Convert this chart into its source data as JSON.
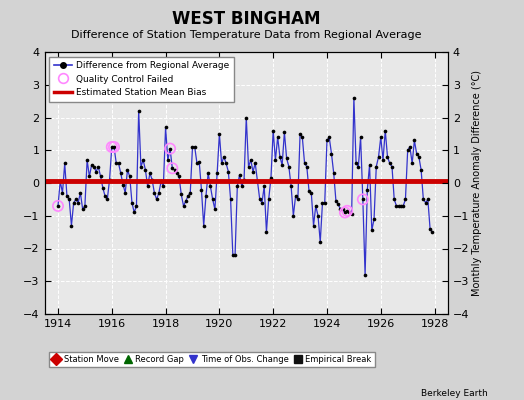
{
  "title": "WEST BINGHAM",
  "subtitle": "Difference of Station Temperature Data from Regional Average",
  "ylabel": "Monthly Temperature Anomaly Difference (°C)",
  "xlabel_bottom": "Berkeley Earth",
  "bias": 0.05,
  "xlim": [
    1913.5,
    1928.5
  ],
  "ylim": [
    -4,
    4
  ],
  "bg_color": "#d3d3d3",
  "plot_bg_color": "#e8e8e8",
  "grid_color": "#ffffff",
  "line_color": "#3333cc",
  "bias_color": "#cc0000",
  "marker_color": "#000000",
  "qc_color": "#ff88ff",
  "xticks": [
    1914,
    1916,
    1918,
    1920,
    1922,
    1924,
    1926,
    1928
  ],
  "yticks": [
    -4,
    -3,
    -2,
    -1,
    0,
    1,
    2,
    3,
    4
  ],
  "data": [
    [
      1914.0,
      -0.7
    ],
    [
      1914.083,
      0.05
    ],
    [
      1914.167,
      -0.3
    ],
    [
      1914.25,
      0.6
    ],
    [
      1914.333,
      -0.4
    ],
    [
      1914.417,
      -0.5
    ],
    [
      1914.5,
      -1.3
    ],
    [
      1914.583,
      -0.6
    ],
    [
      1914.667,
      -0.5
    ],
    [
      1914.75,
      -0.6
    ],
    [
      1914.833,
      -0.3
    ],
    [
      1914.917,
      -0.8
    ],
    [
      1915.0,
      -0.7
    ],
    [
      1915.083,
      0.7
    ],
    [
      1915.167,
      0.2
    ],
    [
      1915.25,
      0.55
    ],
    [
      1915.333,
      0.5
    ],
    [
      1915.417,
      0.35
    ],
    [
      1915.5,
      0.5
    ],
    [
      1915.583,
      0.2
    ],
    [
      1915.667,
      -0.15
    ],
    [
      1915.75,
      -0.4
    ],
    [
      1915.833,
      -0.5
    ],
    [
      1915.917,
      0.1
    ],
    [
      1916.0,
      1.1
    ],
    [
      1916.083,
      1.1
    ],
    [
      1916.167,
      0.6
    ],
    [
      1916.25,
      0.6
    ],
    [
      1916.333,
      0.3
    ],
    [
      1916.417,
      -0.05
    ],
    [
      1916.5,
      -0.3
    ],
    [
      1916.583,
      0.4
    ],
    [
      1916.667,
      0.2
    ],
    [
      1916.75,
      -0.6
    ],
    [
      1916.833,
      -0.9
    ],
    [
      1916.917,
      -0.7
    ],
    [
      1917.0,
      2.2
    ],
    [
      1917.083,
      0.5
    ],
    [
      1917.167,
      0.7
    ],
    [
      1917.25,
      0.4
    ],
    [
      1917.333,
      -0.1
    ],
    [
      1917.417,
      0.3
    ],
    [
      1917.5,
      0.1
    ],
    [
      1917.583,
      -0.3
    ],
    [
      1917.667,
      -0.5
    ],
    [
      1917.75,
      -0.3
    ],
    [
      1917.833,
      0.05
    ],
    [
      1917.917,
      -0.1
    ],
    [
      1918.0,
      1.7
    ],
    [
      1918.083,
      0.7
    ],
    [
      1918.167,
      1.05
    ],
    [
      1918.25,
      0.45
    ],
    [
      1918.333,
      0.4
    ],
    [
      1918.417,
      0.3
    ],
    [
      1918.5,
      0.2
    ],
    [
      1918.583,
      -0.35
    ],
    [
      1918.667,
      -0.7
    ],
    [
      1918.75,
      -0.55
    ],
    [
      1918.833,
      -0.4
    ],
    [
      1918.917,
      -0.3
    ],
    [
      1919.0,
      1.1
    ],
    [
      1919.083,
      1.1
    ],
    [
      1919.167,
      0.6
    ],
    [
      1919.25,
      0.65
    ],
    [
      1919.333,
      -0.2
    ],
    [
      1919.417,
      -1.3
    ],
    [
      1919.5,
      -0.4
    ],
    [
      1919.583,
      0.3
    ],
    [
      1919.667,
      -0.1
    ],
    [
      1919.75,
      -0.5
    ],
    [
      1919.833,
      -0.8
    ],
    [
      1919.917,
      0.3
    ],
    [
      1920.0,
      1.5
    ],
    [
      1920.083,
      0.6
    ],
    [
      1920.167,
      0.8
    ],
    [
      1920.25,
      0.6
    ],
    [
      1920.333,
      0.35
    ],
    [
      1920.417,
      -0.5
    ],
    [
      1920.5,
      -2.2
    ],
    [
      1920.583,
      -2.2
    ],
    [
      1920.667,
      -0.1
    ],
    [
      1920.75,
      0.25
    ],
    [
      1920.833,
      -0.1
    ],
    [
      1920.917,
      0.1
    ],
    [
      1921.0,
      2.0
    ],
    [
      1921.083,
      0.5
    ],
    [
      1921.167,
      0.7
    ],
    [
      1921.25,
      0.35
    ],
    [
      1921.333,
      0.6
    ],
    [
      1921.417,
      0.05
    ],
    [
      1921.5,
      -0.5
    ],
    [
      1921.583,
      -0.6
    ],
    [
      1921.667,
      -0.1
    ],
    [
      1921.75,
      -1.5
    ],
    [
      1921.833,
      -0.5
    ],
    [
      1921.917,
      0.15
    ],
    [
      1922.0,
      1.6
    ],
    [
      1922.083,
      0.7
    ],
    [
      1922.167,
      1.4
    ],
    [
      1922.25,
      0.8
    ],
    [
      1922.333,
      0.55
    ],
    [
      1922.417,
      1.55
    ],
    [
      1922.5,
      0.75
    ],
    [
      1922.583,
      0.5
    ],
    [
      1922.667,
      -0.1
    ],
    [
      1922.75,
      -1.0
    ],
    [
      1922.833,
      -0.4
    ],
    [
      1922.917,
      -0.5
    ],
    [
      1923.0,
      1.5
    ],
    [
      1923.083,
      1.4
    ],
    [
      1923.167,
      0.6
    ],
    [
      1923.25,
      0.5
    ],
    [
      1923.333,
      -0.25
    ],
    [
      1923.417,
      -0.3
    ],
    [
      1923.5,
      -1.3
    ],
    [
      1923.583,
      -0.7
    ],
    [
      1923.667,
      -1.0
    ],
    [
      1923.75,
      -1.8
    ],
    [
      1923.833,
      -0.6
    ],
    [
      1923.917,
      -0.6
    ],
    [
      1924.0,
      1.3
    ],
    [
      1924.083,
      1.4
    ],
    [
      1924.167,
      0.9
    ],
    [
      1924.25,
      0.3
    ],
    [
      1924.333,
      -0.55
    ],
    [
      1924.417,
      -0.65
    ],
    [
      1924.5,
      -0.8
    ],
    [
      1924.583,
      -0.8
    ],
    [
      1924.667,
      -0.9
    ],
    [
      1924.75,
      -0.85
    ],
    [
      1924.833,
      -0.9
    ],
    [
      1924.917,
      -0.95
    ],
    [
      1925.0,
      2.6
    ],
    [
      1925.083,
      0.6
    ],
    [
      1925.167,
      0.5
    ],
    [
      1925.25,
      1.4
    ],
    [
      1925.333,
      -0.5
    ],
    [
      1925.417,
      -2.8
    ],
    [
      1925.5,
      -0.2
    ],
    [
      1925.583,
      0.55
    ],
    [
      1925.667,
      -1.45
    ],
    [
      1925.75,
      -1.1
    ],
    [
      1925.833,
      0.5
    ],
    [
      1925.917,
      0.8
    ],
    [
      1926.0,
      1.4
    ],
    [
      1926.083,
      0.7
    ],
    [
      1926.167,
      1.6
    ],
    [
      1926.25,
      0.8
    ],
    [
      1926.333,
      0.6
    ],
    [
      1926.417,
      0.5
    ],
    [
      1926.5,
      -0.5
    ],
    [
      1926.583,
      -0.7
    ],
    [
      1926.667,
      -0.7
    ],
    [
      1926.75,
      -0.7
    ],
    [
      1926.833,
      -0.7
    ],
    [
      1926.917,
      -0.5
    ],
    [
      1927.0,
      1.0
    ],
    [
      1927.083,
      1.1
    ],
    [
      1927.167,
      0.6
    ],
    [
      1927.25,
      1.3
    ],
    [
      1927.333,
      0.9
    ],
    [
      1927.417,
      0.8
    ],
    [
      1927.5,
      0.4
    ],
    [
      1927.583,
      -0.5
    ],
    [
      1927.667,
      -0.6
    ],
    [
      1927.75,
      -0.5
    ],
    [
      1927.833,
      -1.4
    ],
    [
      1927.917,
      -1.5
    ]
  ],
  "qc_points": [
    [
      1914.0,
      -0.7
    ],
    [
      1916.0,
      1.1
    ],
    [
      1916.083,
      1.1
    ],
    [
      1918.167,
      1.05
    ],
    [
      1918.25,
      0.45
    ],
    [
      1924.667,
      -0.9
    ],
    [
      1924.75,
      -0.85
    ],
    [
      1925.333,
      -0.5
    ]
  ],
  "title_fontsize": 12,
  "subtitle_fontsize": 8,
  "tick_labelsize": 8,
  "ylabel_fontsize": 7
}
